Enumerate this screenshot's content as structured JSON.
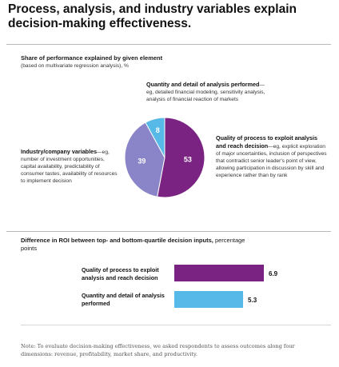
{
  "title": "Process, analysis, and industry variables explain decision-making effectiveness.",
  "colors": {
    "purple": "#7b2382",
    "lavender": "#8a84c8",
    "sky": "#56b9e8"
  },
  "chart_data": [
    {
      "type": "pie",
      "title": "Share of performance explained by given element",
      "subtitle": "(based on multivariate regression analysis), %",
      "slices": [
        {
          "key": "process",
          "value": 53,
          "color": "#7b2382",
          "label_bold": "Quality of process to exploit analysis and reach decision",
          "label_rest": "—eg, explicit exploration of major uncertainties, inclusion of perspectives that contradict senior leader's point of view, allowing participation in discussion by skill and experience rather than by rank"
        },
        {
          "key": "industry",
          "value": 39,
          "color": "#8a84c8",
          "label_bold": "Industry/company variables",
          "label_rest": "—eg, number of investment opportunities, capital availability, predictability of consumer tastes, availability of resources to implement decision"
        },
        {
          "key": "analysis",
          "value": 8,
          "color": "#56b9e8",
          "label_bold": "Quantity and detail of analysis performed",
          "label_rest": "—eg, detailed financial modeling, sensitivity analysis, analysis of financial reaction of markets"
        }
      ]
    },
    {
      "type": "bar",
      "orientation": "horizontal",
      "title": "Difference in ROI between top- and bottom-quartile decision inputs,",
      "subtitle": "percentage points",
      "categories": [
        "Quality of process to exploit analysis and reach decision",
        "Quantity and detail of analysis performed"
      ],
      "values": [
        6.9,
        5.3
      ],
      "value_labels": [
        "6.9",
        "5.3"
      ],
      "colors": [
        "#7b2382",
        "#56b9e8"
      ],
      "xlim": [
        0,
        6.9
      ]
    }
  ],
  "note": "Note: To evaluate decision-making effectiveness, we asked respondents to assess outcomes along four dimensions: revenue, profitability, market share, and productivity."
}
